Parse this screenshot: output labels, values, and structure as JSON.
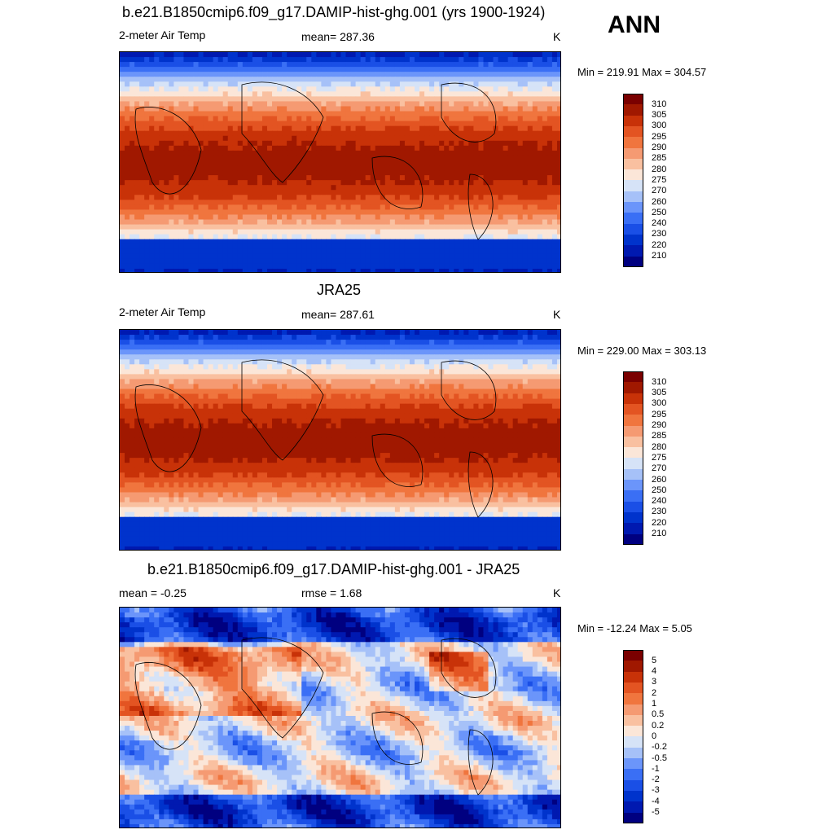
{
  "season": "ANN",
  "panels": [
    {
      "title": "b.e21.B1850cmip6.f09_g17.DAMIP-hist-ghg.001 (yrs 1900-1924)",
      "left": "2-meter Air Temp",
      "center": "mean= 287.36",
      "right": "K",
      "minmax": "Min = 219.91 Max = 304.57",
      "colorbar_labels": [
        "310",
        "305",
        "300",
        "295",
        "290",
        "285",
        "280",
        "275",
        "270",
        "260",
        "250",
        "240",
        "230",
        "220",
        "210"
      ]
    },
    {
      "title": "JRA25",
      "left": "2-meter Air Temp",
      "center": "mean= 287.61",
      "right": "K",
      "minmax": "Min = 229.00 Max = 303.13",
      "colorbar_labels": [
        "310",
        "305",
        "300",
        "295",
        "290",
        "285",
        "280",
        "275",
        "270",
        "260",
        "250",
        "240",
        "230",
        "220",
        "210"
      ]
    },
    {
      "title": "b.e21.B1850cmip6.f09_g17.DAMIP-hist-ghg.001 - JRA25",
      "left": "mean =  -0.25",
      "center": "rmse =   1.68",
      "right": "K",
      "minmax": "Min = -12.24 Max =   5.05",
      "colorbar_labels": [
        "5",
        "4",
        "3",
        "2",
        "1",
        "0.5",
        "0.2",
        "0",
        "-0.2",
        "-0.5",
        "-1",
        "-2",
        "-3",
        "-4",
        "-5"
      ]
    }
  ],
  "chart_data": [
    {
      "type": "heatmap",
      "title": "b.e21.B1850cmip6.f09_g17.DAMIP-hist-ghg.001 (yrs 1900-1924)",
      "variable": "2-meter Air Temp",
      "units": "K",
      "mean": 287.36,
      "min": 219.91,
      "max": 304.57,
      "contour_levels": [
        210,
        220,
        230,
        240,
        250,
        260,
        270,
        275,
        280,
        285,
        290,
        295,
        300,
        305,
        310
      ]
    },
    {
      "type": "heatmap",
      "title": "JRA25",
      "variable": "2-meter Air Temp",
      "units": "K",
      "mean": 287.61,
      "min": 229.0,
      "max": 303.13,
      "contour_levels": [
        210,
        220,
        230,
        240,
        250,
        260,
        270,
        275,
        280,
        285,
        290,
        295,
        300,
        305,
        310
      ]
    },
    {
      "type": "heatmap",
      "title": "b.e21.B1850cmip6.f09_g17.DAMIP-hist-ghg.001 - JRA25",
      "units": "K",
      "mean": -0.25,
      "rmse": 1.68,
      "min": -12.24,
      "max": 5.05,
      "contour_levels": [
        -5,
        -4,
        -3,
        -2,
        -1,
        -0.5,
        -0.2,
        0,
        0.2,
        0.5,
        1,
        2,
        3,
        4,
        5
      ]
    }
  ],
  "colors": {
    "scale": [
      "#000080",
      "#0019b0",
      "#0033cc",
      "#1a4fe6",
      "#3a6ff5",
      "#6b95fa",
      "#a6c1f8",
      "#d6e3f7",
      "#fbe6d8",
      "#f9c0a0",
      "#f59a72",
      "#f0753e",
      "#e35422",
      "#c83208",
      "#a01800",
      "#7a0000"
    ]
  }
}
